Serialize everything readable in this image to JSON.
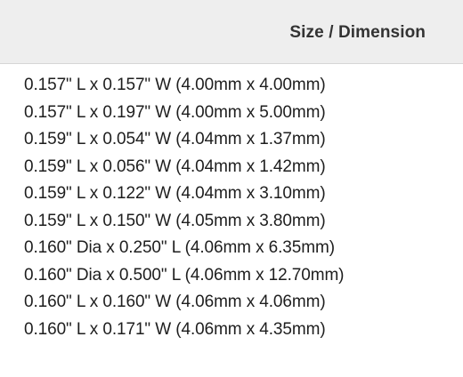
{
  "filter": {
    "title": "Size / Dimension",
    "options": [
      "0.157\" L x 0.157\" W (4.00mm x 4.00mm)",
      "0.157\" L x 0.197\" W (4.00mm x 5.00mm)",
      "0.159\" L x 0.054\" W (4.04mm x 1.37mm)",
      "0.159\" L x 0.056\" W (4.04mm x 1.42mm)",
      "0.159\" L x 0.122\" W (4.04mm x 3.10mm)",
      "0.159\" L x 0.150\" W (4.05mm x 3.80mm)",
      "0.160\" Dia x 0.250\" L (4.06mm x 6.35mm)",
      "0.160\" Dia x 0.500\" L (4.06mm x 12.70mm)",
      "0.160\" L x 0.160\" W (4.06mm x 4.06mm)",
      "0.160\" L x 0.171\" W (4.06mm x 4.35mm)"
    ]
  }
}
